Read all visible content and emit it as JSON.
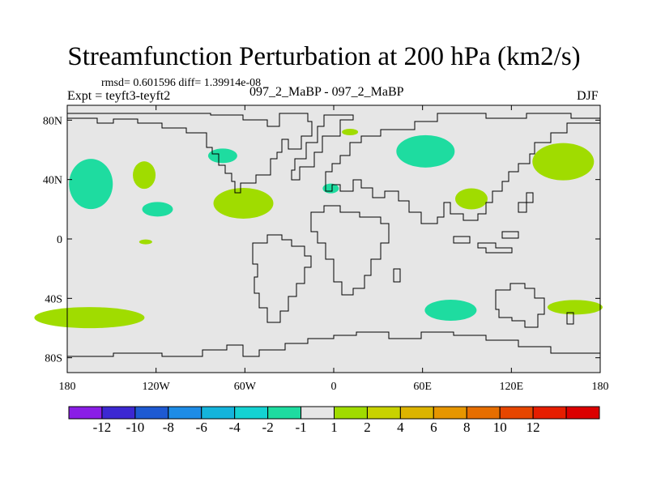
{
  "title": "Streamfunction Perturbation at 200 hPa (km2/s)",
  "stats": "rmsd= 0.601596 diff= 1.39914e-08",
  "experiment": "Expt = teyft3-teyft2",
  "center_label": "097_2_MaBP - 097_2_MaBP",
  "season": "DJF",
  "lat_ticks": [
    {
      "value": 80,
      "label": "80N"
    },
    {
      "value": 40,
      "label": "40N"
    },
    {
      "value": 0,
      "label": "0"
    },
    {
      "value": -40,
      "label": "40S"
    },
    {
      "value": -80,
      "label": "80S"
    }
  ],
  "lon_ticks": [
    {
      "value": -180,
      "label": "180"
    },
    {
      "value": -120,
      "label": "120W"
    },
    {
      "value": -60,
      "label": "60W"
    },
    {
      "value": 0,
      "label": "0"
    },
    {
      "value": 60,
      "label": "60E"
    },
    {
      "value": 120,
      "label": "120E"
    },
    {
      "value": 180,
      "label": "180"
    }
  ],
  "colorbar": {
    "colors": [
      "#8a1ee6",
      "#3c28d2",
      "#1e5ad2",
      "#1e8ce6",
      "#14b4dc",
      "#14d2d2",
      "#1edca0",
      "#e6e6e6",
      "#a0dc00",
      "#c8d200",
      "#dcb400",
      "#e69600",
      "#e66e00",
      "#e64600",
      "#e61e00",
      "#dc0000"
    ],
    "labels": [
      "-12",
      "-10",
      "-8",
      "-6",
      "-4",
      "-2",
      "-1",
      "1",
      "2",
      "4",
      "6",
      "8",
      "10",
      "12"
    ]
  },
  "chart_data": {
    "type": "heatmap",
    "title": "Streamfunction Perturbation at 200 hPa (km2/s)",
    "xlabel": "",
    "ylabel": "",
    "xlim": [
      -180,
      180
    ],
    "ylim": [
      -90,
      90
    ],
    "background_value": "-1 to 1",
    "anomalies": [
      {
        "lon": -164,
        "lat": 37,
        "class": "-2 to -1",
        "color": "#1edca0"
      },
      {
        "lon": -128,
        "lat": 43,
        "class": "1 to 2",
        "color": "#a0dc00"
      },
      {
        "lon": -119,
        "lat": 20,
        "class": "-2 to -1",
        "color": "#1edca0"
      },
      {
        "lon": -127,
        "lat": -2,
        "class": "1 to 2",
        "color": "#a0dc00"
      },
      {
        "lon": -75,
        "lat": 56,
        "class": "-2 to -1",
        "color": "#1edca0"
      },
      {
        "lon": -61,
        "lat": 24,
        "class": "1 to 2",
        "color": "#a0dc00"
      },
      {
        "lon": -2,
        "lat": 34,
        "class": "-2 to -1",
        "color": "#1edca0"
      },
      {
        "lon": 11,
        "lat": 72,
        "class": "1 to 2",
        "color": "#a0dc00"
      },
      {
        "lon": 62,
        "lat": 59,
        "class": "-2 to -1",
        "color": "#1edca0"
      },
      {
        "lon": 93,
        "lat": 27,
        "class": "1 to 2",
        "color": "#a0dc00"
      },
      {
        "lon": 155,
        "lat": 52,
        "class": "1 to 2",
        "color": "#a0dc00"
      },
      {
        "lon": -165,
        "lat": -53,
        "class": "1 to 2",
        "color": "#a0dc00"
      },
      {
        "lon": 79,
        "lat": -48,
        "class": "-2 to -1",
        "color": "#1edca0"
      },
      {
        "lon": 163,
        "lat": -46,
        "class": "1 to 2",
        "color": "#a0dc00"
      }
    ]
  }
}
